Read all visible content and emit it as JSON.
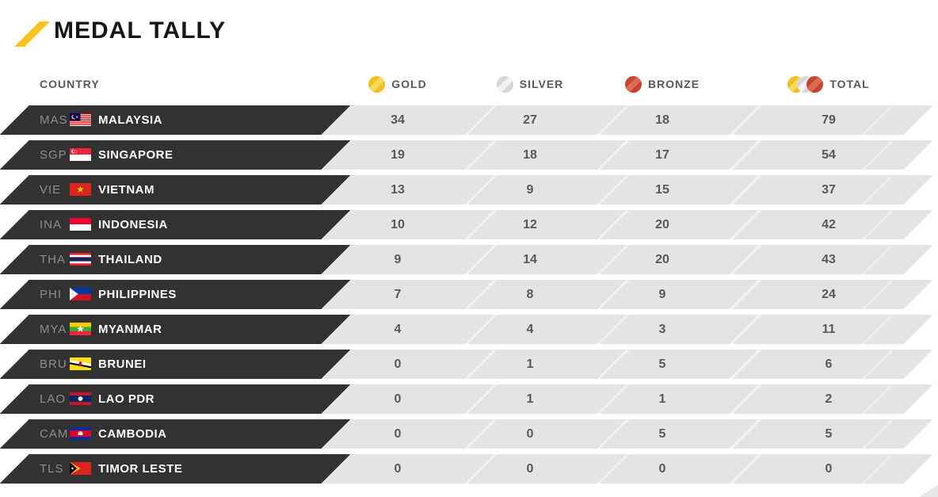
{
  "page": {
    "title": "MEDAL TALLY"
  },
  "table": {
    "country_header": "COUNTRY",
    "columns": [
      {
        "key": "gold",
        "label": "GOLD",
        "icon": "gold-medal-icon"
      },
      {
        "key": "silver",
        "label": "SILVER",
        "icon": "silver-medal-icon"
      },
      {
        "key": "bronze",
        "label": "BRONZE",
        "icon": "bronze-medal-icon"
      },
      {
        "key": "total",
        "label": "TOTAL",
        "icon": "total-medals-icon"
      }
    ],
    "rows": [
      {
        "code": "MAS",
        "country": "MALAYSIA",
        "flag": "malaysia-flag",
        "gold": 34,
        "silver": 27,
        "bronze": 18,
        "total": 79
      },
      {
        "code": "SGP",
        "country": "SINGAPORE",
        "flag": "singapore-flag",
        "gold": 19,
        "silver": 18,
        "bronze": 17,
        "total": 54
      },
      {
        "code": "VIE",
        "country": "VIETNAM",
        "flag": "vietnam-flag",
        "gold": 13,
        "silver": 9,
        "bronze": 15,
        "total": 37
      },
      {
        "code": "INA",
        "country": "INDONESIA",
        "flag": "indonesia-flag",
        "gold": 10,
        "silver": 12,
        "bronze": 20,
        "total": 42
      },
      {
        "code": "THA",
        "country": "THAILAND",
        "flag": "thailand-flag",
        "gold": 9,
        "silver": 14,
        "bronze": 20,
        "total": 43
      },
      {
        "code": "PHI",
        "country": "PHILIPPINES",
        "flag": "philippines-flag",
        "gold": 7,
        "silver": 8,
        "bronze": 9,
        "total": 24
      },
      {
        "code": "MYA",
        "country": "MYANMAR",
        "flag": "myanmar-flag",
        "gold": 4,
        "silver": 4,
        "bronze": 3,
        "total": 11
      },
      {
        "code": "BRU",
        "country": "BRUNEI",
        "flag": "brunei-flag",
        "gold": 0,
        "silver": 1,
        "bronze": 5,
        "total": 6
      },
      {
        "code": "LAO",
        "country": "LAO PDR",
        "flag": "lao-pdr-flag",
        "gold": 0,
        "silver": 1,
        "bronze": 1,
        "total": 2
      },
      {
        "code": "CAM",
        "country": "CAMBODIA",
        "flag": "cambodia-flag",
        "gold": 0,
        "silver": 0,
        "bronze": 5,
        "total": 5
      },
      {
        "code": "TLS",
        "country": "TIMOR LESTE",
        "flag": "timor-leste-flag",
        "gold": 0,
        "silver": 0,
        "bronze": 0,
        "total": 0
      }
    ]
  },
  "colors": {
    "accent_yellow": "#FBC31B",
    "gold_medal": "#F1C01D",
    "silver_medal": "#D7D7D8",
    "bronze_medal": "#C74331",
    "row_dark": "#323232",
    "row_light": "#E4E4E5"
  }
}
